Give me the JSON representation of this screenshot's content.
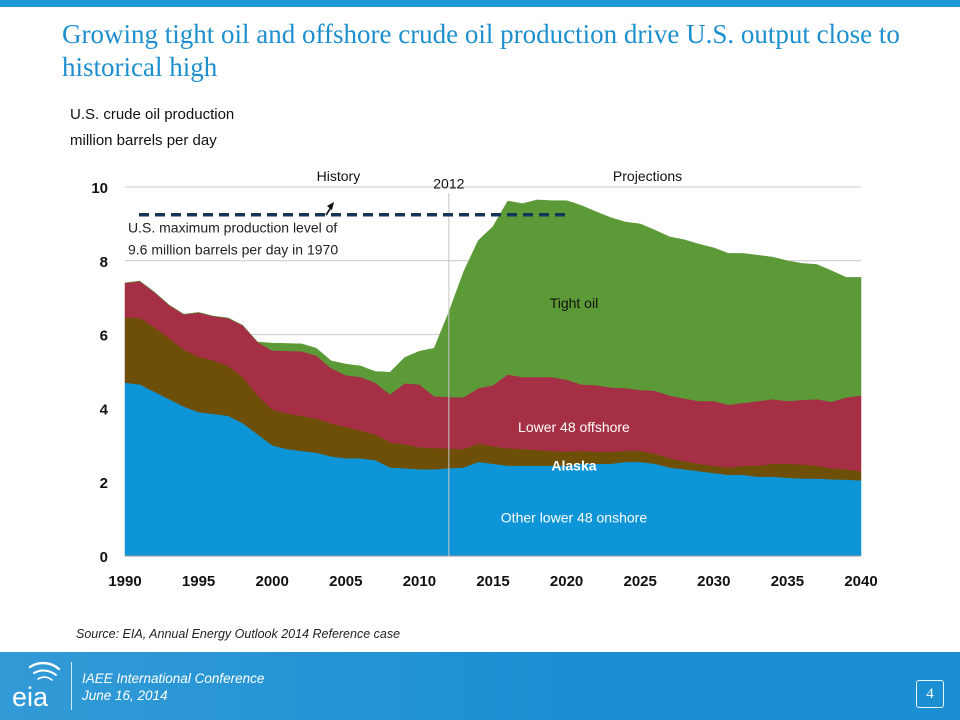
{
  "slide": {
    "title": "Growing tight oil and offshore crude oil production drive U.S. output close to historical high",
    "subtitle_line1": "U.S. crude oil production",
    "subtitle_line2": "million barrels per day",
    "source": "Source:  EIA, Annual Energy Outlook 2014 Reference case",
    "footer_line1": "IAEE International Conference",
    "footer_line2": "June 16, 2014",
    "page_number": "4",
    "logo_text": "eia"
  },
  "chart_data": {
    "type": "area",
    "stacked": true,
    "title": "U.S. crude oil production",
    "ylabel": "million barrels per day",
    "xlim": [
      1990,
      2040
    ],
    "ylim": [
      0,
      10
    ],
    "x_ticks": [
      1990,
      1995,
      2000,
      2005,
      2010,
      2015,
      2020,
      2025,
      2030,
      2035,
      2040
    ],
    "y_ticks": [
      0,
      2,
      4,
      6,
      8,
      10
    ],
    "grid": "horizontal",
    "history_end_year": 2012,
    "x": [
      1990,
      1991,
      1992,
      1993,
      1994,
      1995,
      1996,
      1997,
      1998,
      1999,
      2000,
      2001,
      2002,
      2003,
      2004,
      2005,
      2006,
      2007,
      2008,
      2009,
      2010,
      2011,
      2012,
      2013,
      2014,
      2015,
      2016,
      2017,
      2018,
      2019,
      2020,
      2021,
      2022,
      2023,
      2024,
      2025,
      2026,
      2027,
      2028,
      2029,
      2030,
      2031,
      2032,
      2033,
      2034,
      2035,
      2036,
      2037,
      2038,
      2039,
      2040
    ],
    "series": [
      {
        "name": "Other lower 48 onshore",
        "color": "#0d95d8",
        "values": [
          4.7,
          4.65,
          4.45,
          4.25,
          4.05,
          3.9,
          3.85,
          3.8,
          3.6,
          3.3,
          3.0,
          2.9,
          2.85,
          2.8,
          2.7,
          2.65,
          2.65,
          2.6,
          2.4,
          2.38,
          2.35,
          2.35,
          2.38,
          2.4,
          2.55,
          2.5,
          2.45,
          2.45,
          2.45,
          2.45,
          2.45,
          2.5,
          2.5,
          2.5,
          2.55,
          2.55,
          2.5,
          2.4,
          2.35,
          2.3,
          2.25,
          2.2,
          2.2,
          2.15,
          2.15,
          2.12,
          2.1,
          2.1,
          2.08,
          2.07,
          2.05
        ]
      },
      {
        "name": "Alaska",
        "color": "#6e4f08",
        "values": [
          1.77,
          1.8,
          1.75,
          1.65,
          1.55,
          1.5,
          1.45,
          1.35,
          1.25,
          1.05,
          0.97,
          0.96,
          0.95,
          0.93,
          0.89,
          0.85,
          0.75,
          0.7,
          0.68,
          0.65,
          0.6,
          0.58,
          0.53,
          0.5,
          0.5,
          0.48,
          0.47,
          0.45,
          0.42,
          0.4,
          0.38,
          0.35,
          0.33,
          0.32,
          0.3,
          0.3,
          0.28,
          0.25,
          0.22,
          0.2,
          0.2,
          0.2,
          0.25,
          0.3,
          0.35,
          0.38,
          0.38,
          0.35,
          0.3,
          0.28,
          0.25
        ]
      },
      {
        "name": "Lower 48 offshore",
        "color": "#a52f44",
        "values": [
          0.93,
          1.0,
          0.95,
          0.9,
          0.95,
          1.2,
          1.2,
          1.3,
          1.4,
          1.45,
          1.6,
          1.7,
          1.75,
          1.7,
          1.5,
          1.4,
          1.45,
          1.4,
          1.3,
          1.65,
          1.7,
          1.4,
          1.4,
          1.4,
          1.5,
          1.65,
          2.0,
          1.95,
          1.98,
          2.0,
          1.95,
          1.8,
          1.8,
          1.75,
          1.7,
          1.65,
          1.7,
          1.7,
          1.7,
          1.7,
          1.75,
          1.7,
          1.7,
          1.75,
          1.75,
          1.7,
          1.75,
          1.8,
          1.8,
          1.95,
          2.05
        ]
      },
      {
        "name": "Tight oil",
        "color": "#5c9a37",
        "values": [
          0,
          0,
          0,
          0,
          0,
          0,
          0,
          0,
          0,
          0,
          0.2,
          0.2,
          0.2,
          0.2,
          0.2,
          0.3,
          0.3,
          0.3,
          0.6,
          0.7,
          0.9,
          1.3,
          2.3,
          3.4,
          4.0,
          4.3,
          4.7,
          4.7,
          4.8,
          4.78,
          4.85,
          4.85,
          4.7,
          4.6,
          4.5,
          4.5,
          4.35,
          4.3,
          4.3,
          4.25,
          4.15,
          4.1,
          4.05,
          3.95,
          3.85,
          3.8,
          3.7,
          3.65,
          3.55,
          3.25,
          3.2
        ]
      }
    ],
    "annotations": [
      {
        "text": "History",
        "year": 2004.5,
        "y": 10.3
      },
      {
        "text": "Projections",
        "year": 2025.5,
        "y": 10.3
      },
      {
        "text": "2012",
        "year": 2012,
        "y": 10.1
      },
      {
        "text": "U.S. maximum production level of",
        "year": 1990,
        "y": 8.9
      },
      {
        "text": "9.6 million barrels per day in 1970",
        "year": 1990,
        "y": 8.3
      },
      {
        "text": "Tight oil",
        "year": 2020.5,
        "y": 6.85
      },
      {
        "text": "Lower 48 offshore",
        "year": 2020.5,
        "y": 3.5
      },
      {
        "text": "Alaska",
        "year": 2020.5,
        "y": 2.45
      },
      {
        "text": "Other lower 48 onshore",
        "year": 2020.5,
        "y": 1.05
      }
    ],
    "reference_line": {
      "label": "U.S. maximum production level",
      "y": 9.6,
      "x_start": 1990,
      "x_end": 2020,
      "color": "#15355c"
    }
  }
}
